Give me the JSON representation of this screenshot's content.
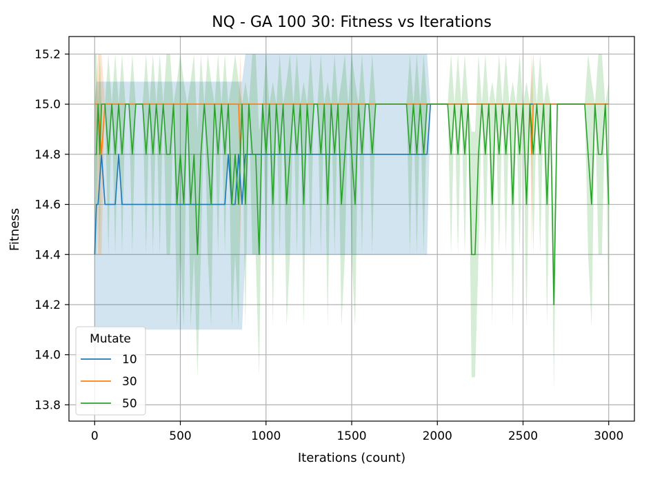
{
  "chart_data": {
    "type": "line",
    "title": "NQ - GA 100 30: Fitness vs Iterations",
    "xlabel": "Iterations (count)",
    "ylabel": "Fitness",
    "xlim": [
      -150,
      3150
    ],
    "ylim": [
      13.735,
      15.27
    ],
    "xticks": [
      0,
      500,
      1000,
      1500,
      2000,
      2500,
      3000
    ],
    "yticks": [
      13.8,
      14.0,
      14.2,
      14.4,
      14.6,
      14.8,
      15.0,
      15.2
    ],
    "xtick_labels": [
      "0",
      "500",
      "1000",
      "1500",
      "2000",
      "2500",
      "3000"
    ],
    "ytick_labels": [
      "13.8",
      "14.0",
      "14.2",
      "14.4",
      "14.6",
      "14.8",
      "15.0",
      "15.2"
    ],
    "grid": true,
    "legend": {
      "title": "Mutate",
      "placement": "lower-left"
    },
    "series": [
      {
        "name": "10",
        "color": "#1f77b4",
        "band_opacity": 0.2,
        "x": [
          0,
          10,
          20,
          40,
          60,
          120,
          140,
          160,
          760,
          780,
          800,
          820,
          840,
          860,
          880,
          900,
          1940,
          1960,
          2000,
          2200,
          2500,
          2800,
          3000
        ],
        "y": [
          14.4,
          14.6,
          14.6,
          14.8,
          14.6,
          14.6,
          14.8,
          14.6,
          14.6,
          14.8,
          14.6,
          14.6,
          14.8,
          14.6,
          14.8,
          14.8,
          14.8,
          15.0,
          15.0,
          15.0,
          15.0,
          15.0,
          15.0
        ],
        "band_low": [
          13.8,
          14.1,
          14.1,
          14.1,
          14.1,
          14.1,
          14.1,
          14.1,
          14.1,
          14.1,
          14.1,
          14.1,
          14.1,
          14.1,
          14.4,
          14.4,
          14.4,
          15.0,
          15.0,
          15.0,
          15.0,
          15.0,
          15.0
        ],
        "band_high": [
          15.0,
          15.09,
          15.09,
          15.09,
          15.09,
          15.09,
          15.09,
          15.09,
          15.09,
          15.09,
          15.09,
          15.09,
          15.09,
          15.09,
          15.2,
          15.2,
          15.2,
          15.0,
          15.0,
          15.0,
          15.0,
          15.0,
          15.0
        ]
      },
      {
        "name": "30",
        "color": "#ff7f0e",
        "band_opacity": 0.2,
        "x": [
          0,
          20,
          40,
          60,
          840,
          850,
          860,
          900,
          2540,
          2550,
          2560,
          3000
        ],
        "y": [
          15.0,
          15.0,
          14.8,
          15.0,
          15.0,
          14.8,
          15.0,
          15.0,
          15.0,
          14.8,
          15.0,
          15.0
        ],
        "band_low": [
          15.0,
          14.4,
          14.4,
          15.0,
          15.0,
          14.4,
          15.0,
          15.0,
          15.0,
          14.4,
          15.0,
          15.0
        ],
        "band_high": [
          15.0,
          15.2,
          15.2,
          15.0,
          15.0,
          15.2,
          15.0,
          15.0,
          15.0,
          15.2,
          15.0,
          15.0
        ]
      },
      {
        "name": "50",
        "color": "#2ca02c",
        "band_opacity": 0.2,
        "x": [
          0,
          10,
          20,
          30,
          40,
          60,
          80,
          100,
          120,
          140,
          160,
          180,
          200,
          220,
          240,
          260,
          280,
          300,
          320,
          340,
          360,
          380,
          400,
          420,
          440,
          460,
          480,
          500,
          520,
          540,
          560,
          580,
          600,
          620,
          640,
          660,
          680,
          700,
          720,
          740,
          760,
          780,
          800,
          820,
          840,
          860,
          880,
          900,
          920,
          940,
          960,
          980,
          1000,
          1020,
          1040,
          1060,
          1080,
          1100,
          1120,
          1140,
          1160,
          1180,
          1200,
          1220,
          1240,
          1260,
          1280,
          1300,
          1320,
          1340,
          1360,
          1380,
          1400,
          1420,
          1440,
          1460,
          1480,
          1500,
          1520,
          1540,
          1560,
          1580,
          1600,
          1620,
          1640,
          1660,
          1680,
          1700,
          1720,
          1740,
          1760,
          1780,
          1800,
          1820,
          1840,
          1860,
          1880,
          1900,
          1920,
          1940,
          1960,
          1980,
          2000,
          2020,
          2040,
          2060,
          2080,
          2100,
          2120,
          2140,
          2160,
          2180,
          2200,
          2220,
          2240,
          2260,
          2280,
          2300,
          2320,
          2340,
          2360,
          2380,
          2400,
          2420,
          2440,
          2460,
          2480,
          2500,
          2520,
          2540,
          2560,
          2580,
          2600,
          2620,
          2640,
          2660,
          2680,
          2700,
          2720,
          2740,
          2760,
          2780,
          2800,
          2820,
          2840,
          2860,
          2880,
          2900,
          2920,
          2940,
          2960,
          2980,
          3000
        ],
        "y": [
          14.8,
          14.8,
          15.0,
          14.8,
          15.0,
          15.0,
          14.8,
          15.0,
          14.8,
          15.0,
          14.8,
          15.0,
          15.0,
          14.8,
          15.0,
          15.0,
          15.0,
          14.8,
          15.0,
          14.8,
          15.0,
          14.8,
          15.0,
          14.8,
          14.8,
          15.0,
          14.6,
          14.8,
          14.6,
          15.0,
          14.6,
          14.8,
          14.4,
          14.8,
          15.0,
          14.8,
          14.6,
          15.0,
          14.8,
          15.0,
          14.8,
          15.0,
          14.6,
          14.8,
          14.6,
          15.0,
          14.6,
          15.0,
          14.8,
          14.8,
          14.4,
          15.0,
          14.8,
          15.0,
          14.6,
          15.0,
          14.8,
          15.0,
          14.6,
          14.8,
          15.0,
          14.8,
          15.0,
          14.6,
          15.0,
          14.8,
          15.0,
          15.0,
          14.8,
          15.0,
          14.6,
          15.0,
          14.8,
          15.0,
          14.6,
          14.8,
          15.0,
          14.8,
          14.6,
          15.0,
          14.8,
          15.0,
          15.0,
          14.8,
          15.0,
          15.0,
          15.0,
          15.0,
          15.0,
          15.0,
          15.0,
          15.0,
          15.0,
          15.0,
          14.8,
          15.0,
          14.8,
          15.0,
          14.8,
          15.0,
          15.0,
          15.0,
          15.0,
          15.0,
          15.0,
          15.0,
          14.8,
          15.0,
          14.8,
          15.0,
          14.8,
          15.0,
          14.4,
          14.4,
          14.8,
          15.0,
          14.8,
          15.0,
          14.6,
          15.0,
          14.8,
          15.0,
          14.8,
          15.0,
          14.6,
          15.0,
          14.8,
          15.0,
          14.6,
          15.0,
          14.8,
          15.0,
          14.8,
          15.0,
          14.6,
          15.0,
          14.2,
          15.0,
          15.0,
          15.0,
          15.0,
          15.0,
          15.0,
          15.0,
          15.0,
          15.0,
          14.8,
          14.6,
          15.0,
          14.8,
          14.8,
          15.0,
          14.6
        ],
        "band_low": [
          14.4,
          14.4,
          15.0,
          14.4,
          15.0,
          15.0,
          14.4,
          15.0,
          14.4,
          15.0,
          14.4,
          15.0,
          15.0,
          14.4,
          15.0,
          15.0,
          15.0,
          14.4,
          15.0,
          14.4,
          15.0,
          14.4,
          15.0,
          14.4,
          14.4,
          15.0,
          14.11,
          14.4,
          14.11,
          15.0,
          14.11,
          14.4,
          13.91,
          14.4,
          15.0,
          14.4,
          14.11,
          15.0,
          14.4,
          15.0,
          14.4,
          15.0,
          14.11,
          14.4,
          14.11,
          15.0,
          14.11,
          15.0,
          14.4,
          14.4,
          13.91,
          15.0,
          14.4,
          15.0,
          14.11,
          15.0,
          14.4,
          15.0,
          14.11,
          14.4,
          15.0,
          14.4,
          15.0,
          14.11,
          15.0,
          14.4,
          15.0,
          15.0,
          14.4,
          15.0,
          14.11,
          15.0,
          14.4,
          15.0,
          14.11,
          14.4,
          15.0,
          14.4,
          14.11,
          15.0,
          14.4,
          15.0,
          15.0,
          14.4,
          15.0,
          15.0,
          15.0,
          15.0,
          15.0,
          15.0,
          15.0,
          15.0,
          15.0,
          15.0,
          14.4,
          15.0,
          14.4,
          15.0,
          14.4,
          15.0,
          15.0,
          15.0,
          15.0,
          15.0,
          15.0,
          15.0,
          14.4,
          15.0,
          14.4,
          15.0,
          14.4,
          15.0,
          13.91,
          13.91,
          14.4,
          15.0,
          14.4,
          15.0,
          14.11,
          15.0,
          14.4,
          15.0,
          14.4,
          15.0,
          14.11,
          15.0,
          14.4,
          15.0,
          14.11,
          15.0,
          14.4,
          15.0,
          14.4,
          15.0,
          14.11,
          15.0,
          13.85,
          15.0,
          15.0,
          15.0,
          15.0,
          15.0,
          15.0,
          15.0,
          15.0,
          15.0,
          14.4,
          14.11,
          15.0,
          14.4,
          14.4,
          15.0,
          14.11
        ],
        "band_high": [
          15.2,
          15.2,
          15.0,
          15.2,
          15.0,
          15.0,
          15.2,
          15.0,
          15.2,
          15.0,
          15.2,
          15.0,
          15.0,
          15.2,
          15.0,
          15.0,
          15.0,
          15.2,
          15.0,
          15.2,
          15.0,
          15.2,
          15.0,
          15.2,
          15.2,
          15.0,
          15.09,
          15.2,
          15.09,
          15.0,
          15.09,
          15.2,
          14.89,
          15.2,
          15.0,
          15.2,
          15.09,
          15.0,
          15.2,
          15.0,
          15.2,
          15.0,
          15.09,
          15.2,
          15.09,
          15.0,
          15.09,
          15.0,
          15.2,
          15.2,
          14.89,
          15.0,
          15.2,
          15.0,
          15.09,
          15.0,
          15.2,
          15.0,
          15.09,
          15.2,
          15.0,
          15.2,
          15.0,
          15.09,
          15.0,
          15.2,
          15.0,
          15.0,
          15.2,
          15.0,
          15.09,
          15.0,
          15.2,
          15.0,
          15.09,
          15.2,
          15.0,
          15.2,
          15.09,
          15.0,
          15.2,
          15.0,
          15.0,
          15.2,
          15.0,
          15.0,
          15.0,
          15.0,
          15.0,
          15.0,
          15.0,
          15.0,
          15.0,
          15.0,
          15.2,
          15.0,
          15.2,
          15.0,
          15.2,
          15.0,
          15.0,
          15.0,
          15.0,
          15.0,
          15.0,
          15.0,
          15.2,
          15.0,
          15.2,
          15.0,
          15.2,
          15.0,
          14.89,
          14.89,
          15.2,
          15.0,
          15.2,
          15.0,
          15.09,
          15.0,
          15.2,
          15.0,
          15.2,
          15.0,
          15.09,
          15.0,
          15.2,
          15.0,
          15.09,
          15.0,
          15.2,
          15.0,
          15.2,
          15.0,
          15.09,
          15.0,
          14.55,
          15.0,
          15.0,
          15.0,
          15.0,
          15.0,
          15.0,
          15.0,
          15.0,
          15.0,
          15.2,
          15.09,
          15.0,
          15.2,
          15.2,
          15.0,
          15.09
        ]
      }
    ]
  }
}
